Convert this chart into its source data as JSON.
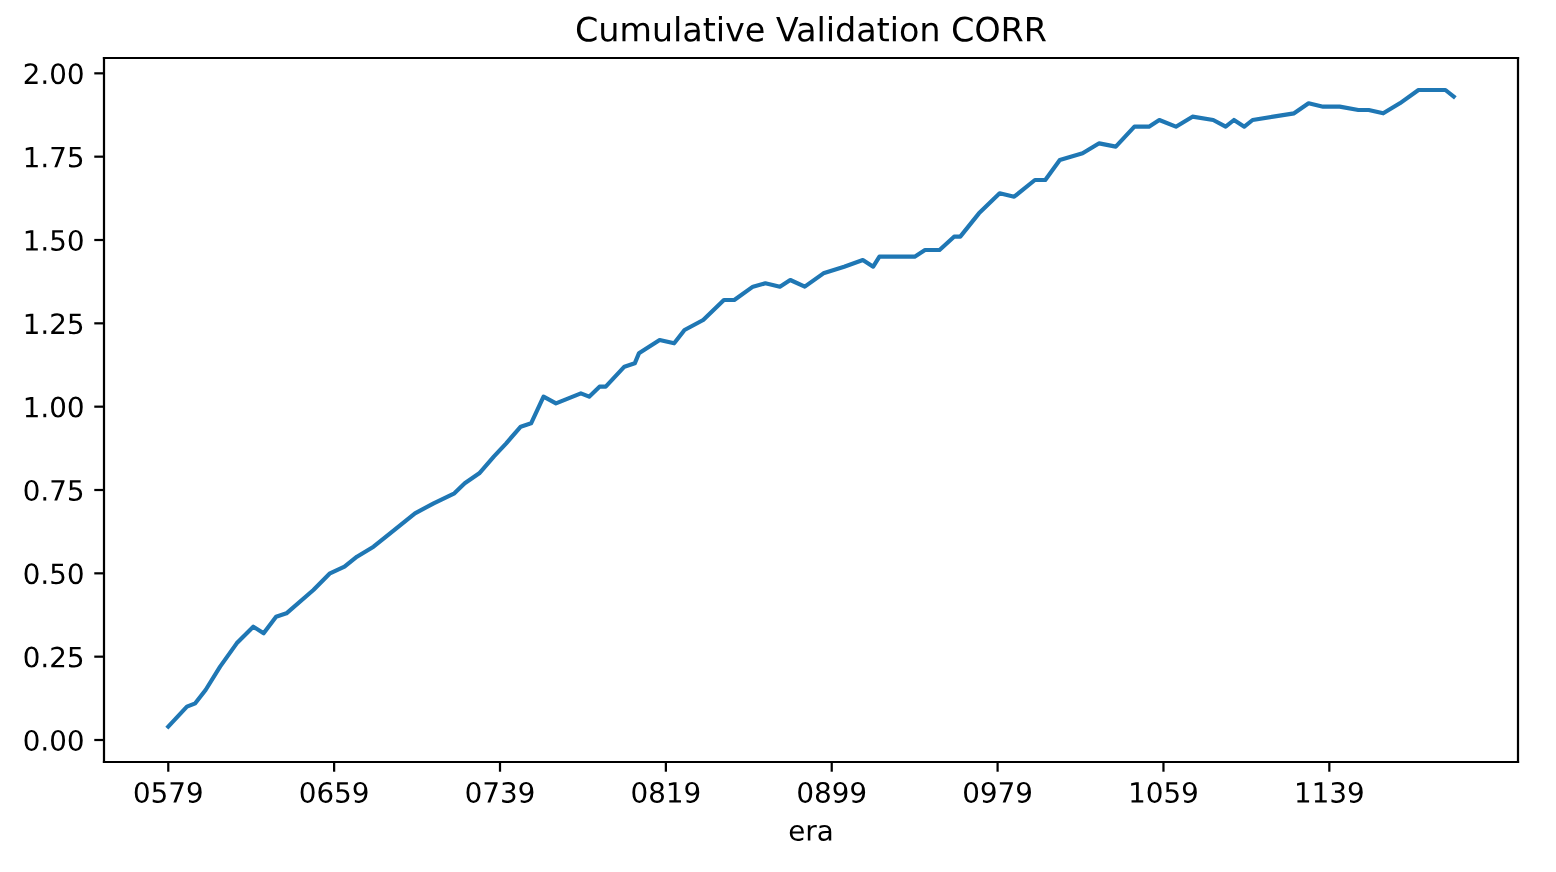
{
  "chart_data": {
    "type": "line",
    "title": "Cumulative Validation CORR",
    "xlabel": "era",
    "x": [
      579,
      588,
      592,
      597,
      604,
      612,
      620,
      625,
      631,
      636,
      649,
      657,
      664,
      670,
      678,
      686,
      698,
      707,
      717,
      722,
      729,
      736,
      742,
      749,
      754,
      760,
      766,
      778,
      782,
      787,
      790,
      799,
      804,
      806,
      816,
      823,
      828,
      837,
      847,
      852,
      861,
      867,
      874,
      879,
      886,
      895,
      905,
      914,
      919,
      922,
      927,
      930,
      939,
      944,
      951,
      958,
      961,
      970,
      980,
      987,
      997,
      1002,
      1009,
      1020,
      1028,
      1036,
      1045,
      1052,
      1057,
      1065,
      1073,
      1083,
      1089,
      1093,
      1098,
      1102,
      1112,
      1122,
      1129,
      1136,
      1144,
      1153,
      1158,
      1165,
      1173,
      1182,
      1189,
      1195,
      1199
    ],
    "series": [
      {
        "color": "#1f77b4",
        "values": [
          0.04,
          0.1,
          0.11,
          0.15,
          0.22,
          0.29,
          0.34,
          0.32,
          0.37,
          0.38,
          0.45,
          0.5,
          0.52,
          0.55,
          0.58,
          0.62,
          0.68,
          0.71,
          0.74,
          0.77,
          0.8,
          0.85,
          0.89,
          0.94,
          0.95,
          1.03,
          1.01,
          1.04,
          1.03,
          1.06,
          1.06,
          1.12,
          1.13,
          1.16,
          1.2,
          1.19,
          1.23,
          1.26,
          1.32,
          1.32,
          1.36,
          1.37,
          1.36,
          1.38,
          1.36,
          1.4,
          1.42,
          1.44,
          1.42,
          1.45,
          1.45,
          1.45,
          1.45,
          1.47,
          1.47,
          1.51,
          1.51,
          1.58,
          1.64,
          1.63,
          1.68,
          1.68,
          1.74,
          1.76,
          1.79,
          1.78,
          1.84,
          1.84,
          1.86,
          1.84,
          1.87,
          1.86,
          1.84,
          1.86,
          1.84,
          1.86,
          1.87,
          1.88,
          1.91,
          1.9,
          1.9,
          1.89,
          1.89,
          1.88,
          1.91,
          1.95,
          1.95,
          1.95,
          1.93
        ]
      }
    ],
    "xlim": [
      548,
      1230
    ],
    "ylim": [
      -0.066,
      2.046
    ],
    "xticks": [
      {
        "value": 579,
        "label": "0579"
      },
      {
        "value": 659,
        "label": "0659"
      },
      {
        "value": 739,
        "label": "0739"
      },
      {
        "value": 819,
        "label": "0819"
      },
      {
        "value": 899,
        "label": "0899"
      },
      {
        "value": 979,
        "label": "0979"
      },
      {
        "value": 1059,
        "label": "1059"
      },
      {
        "value": 1139,
        "label": "1139"
      }
    ],
    "yticks": [
      {
        "value": 0,
        "label": "0.00"
      },
      {
        "value": 0.25,
        "label": "0.25"
      },
      {
        "value": 0.5,
        "label": "0.50"
      },
      {
        "value": 0.75,
        "label": "0.75"
      },
      {
        "value": 1,
        "label": "1.00"
      },
      {
        "value": 1.25,
        "label": "1.25"
      },
      {
        "value": 1.5,
        "label": "1.50"
      },
      {
        "value": 1.75,
        "label": "1.75"
      },
      {
        "value": 2,
        "label": "2.00"
      }
    ],
    "grid": false,
    "legend": false,
    "marker": "none",
    "line_style": "solid"
  }
}
